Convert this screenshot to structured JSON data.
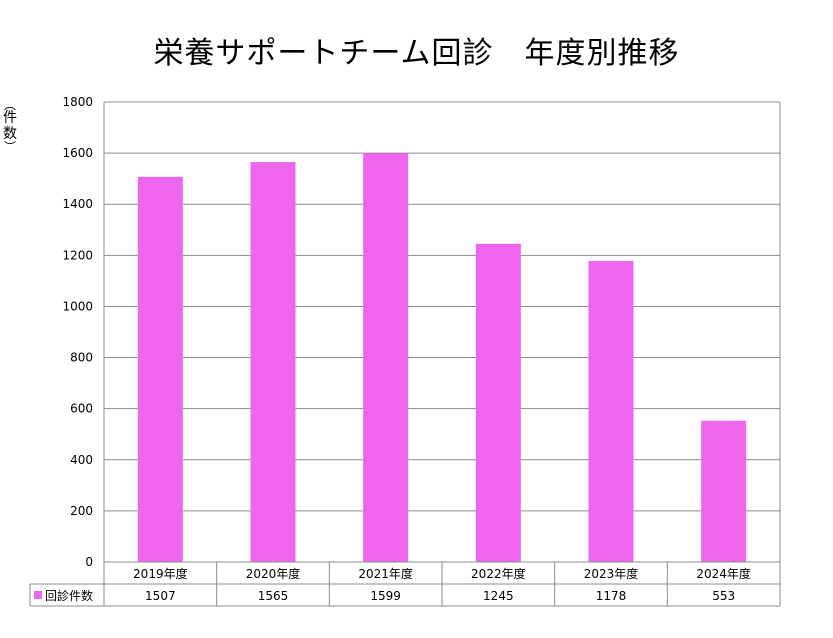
{
  "chart_data": {
    "type": "bar",
    "title": "栄養サポートチーム回診　年度別推移",
    "ylabel": "件数",
    "ylim": [
      0,
      1800
    ],
    "ytick_step": 200,
    "yticks": [
      "0",
      "200",
      "400",
      "600",
      "800",
      "1000",
      "1200",
      "1400",
      "1600",
      "1800"
    ],
    "categories": [
      "2019年度",
      "2020年度",
      "2021年度",
      "2022年度",
      "2023年度",
      "2024年度"
    ],
    "series": [
      {
        "name": "回診件数",
        "values": [
          1507,
          1565,
          1599,
          1245,
          1178,
          553
        ],
        "color": "#ee66ee"
      }
    ],
    "grid": true,
    "legend": "data-table-left",
    "data_table": true
  }
}
